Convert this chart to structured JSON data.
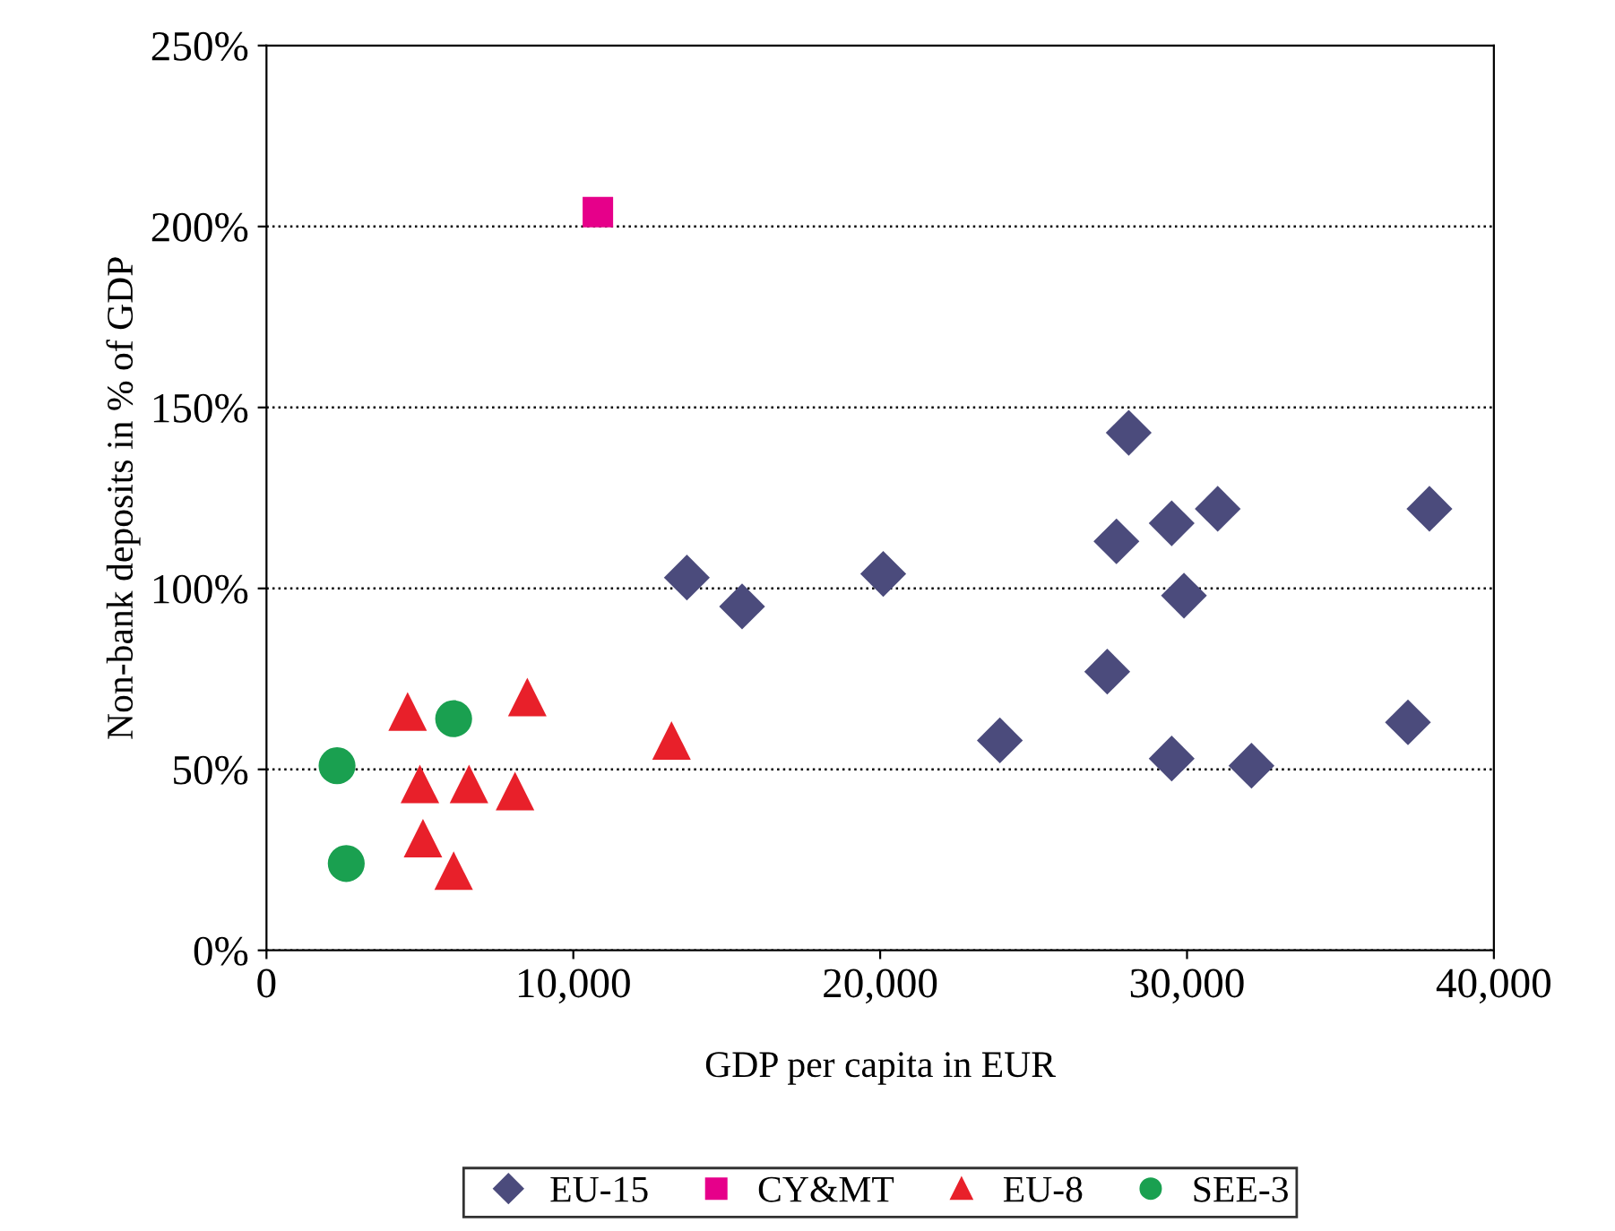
{
  "chart_data": {
    "type": "scatter",
    "xlabel": "GDP per capita in EUR",
    "ylabel": "Non-bank deposits in % of GDP",
    "xlim": [
      0,
      40000
    ],
    "xticks": [
      {
        "value": 0,
        "label": "0"
      },
      {
        "value": 10000,
        "label": "10,000"
      },
      {
        "value": 20000,
        "label": "20,000"
      },
      {
        "value": 30000,
        "label": "30,000"
      },
      {
        "value": 40000,
        "label": "40,000"
      }
    ],
    "ylim": [
      0,
      250
    ],
    "yticks": [
      {
        "value": 0,
        "label": "0%"
      },
      {
        "value": 50,
        "label": "50%"
      },
      {
        "value": 100,
        "label": "100%"
      },
      {
        "value": 150,
        "label": "150%"
      },
      {
        "value": 200,
        "label": "200%"
      },
      {
        "value": 250,
        "label": "250%"
      }
    ],
    "grid": "y",
    "legend": "bottom",
    "series": [
      {
        "name": "EU-15",
        "color": "#4b4b7c",
        "marker": "diamond",
        "x": [
          13700,
          15500,
          20100,
          23900,
          28100,
          27700,
          29500,
          31000,
          29900,
          27400,
          29500,
          32100,
          37200,
          37900
        ],
        "values": [
          103,
          95,
          104,
          58,
          143,
          113,
          118,
          122,
          98,
          77,
          53,
          51,
          63,
          122
        ]
      },
      {
        "name": "CY&MT",
        "color": "#e6008a",
        "marker": "square",
        "x": [
          10800
        ],
        "values": [
          204
        ]
      },
      {
        "name": "EU-8",
        "color": "#e8202a",
        "marker": "triangle",
        "x": [
          4600,
          5000,
          5100,
          6100,
          6600,
          8100,
          8500,
          13200
        ],
        "values": [
          66,
          46,
          31,
          22,
          46,
          44,
          70,
          58
        ]
      },
      {
        "name": "SEE-3",
        "color": "#1aa050",
        "marker": "circle",
        "x": [
          2300,
          2600,
          6100
        ],
        "values": [
          51,
          24,
          64
        ]
      }
    ]
  }
}
